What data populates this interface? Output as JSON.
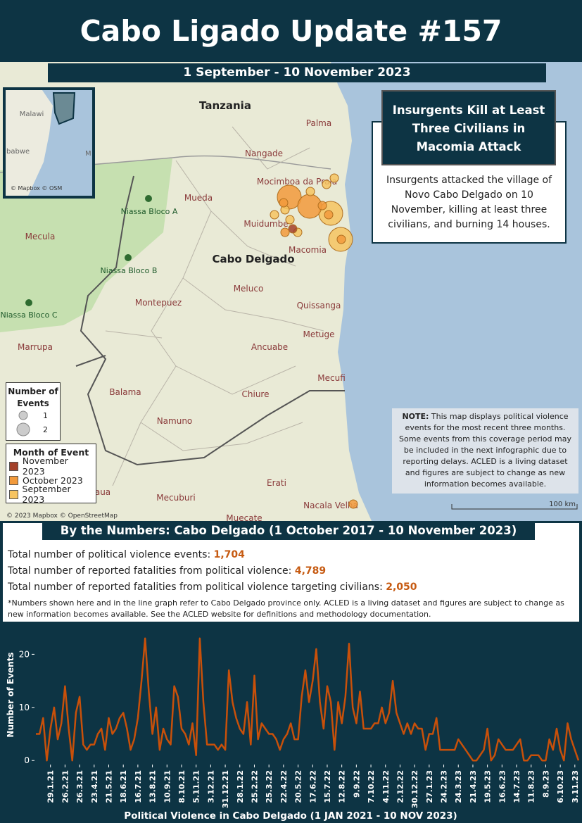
{
  "header": {
    "title": "Cabo Ligado Update #157",
    "period": "1 September - 10 November 2023"
  },
  "map": {
    "places": [
      "Tanzania",
      "Cabo Delgado",
      "Palma",
      "Nangade",
      "Mocimboa da Praia",
      "Mueda",
      "Muidumbe",
      "Macomia",
      "Meluco",
      "Quissanga",
      "Montepuez",
      "Metuge",
      "Ancuabe",
      "Mecufi",
      "Chiure",
      "Balama",
      "Namuno",
      "Mecuburi",
      "Erati",
      "Nacala Velha",
      "Muecate",
      "Marrupa",
      "Mecula",
      "aua"
    ],
    "reserves": [
      "Niassa Bloco A",
      "Niassa Bloco B",
      "Niassa Bloco C"
    ],
    "inset": {
      "labels": [
        "Malawi",
        "babwe",
        "M"
      ],
      "credit": "© Mapbox © OSM"
    },
    "credit": "© 2023 Mapbox © OpenStreetMap",
    "scale": "100 km",
    "events": [
      {
        "count": 2,
        "month": "October 2023"
      },
      {
        "count": 2,
        "month": "September 2023"
      },
      {
        "count": 2,
        "month": "September 2023"
      },
      {
        "count": 2,
        "month": "October 2023"
      },
      {
        "count": 1,
        "month": "September 2023"
      },
      {
        "count": 1,
        "month": "September 2023"
      },
      {
        "count": 1,
        "month": "October 2023"
      },
      {
        "count": 1,
        "month": "October 2023"
      },
      {
        "count": 1,
        "month": "October 2023"
      },
      {
        "count": 1,
        "month": "September 2023"
      },
      {
        "count": 1,
        "month": "September 2023"
      },
      {
        "count": 1,
        "month": "October 2023"
      },
      {
        "count": 1,
        "month": "September 2023"
      },
      {
        "count": 1,
        "month": "September 2023"
      },
      {
        "count": 1,
        "month": "October 2023"
      },
      {
        "count": 1,
        "month": "November 2023"
      },
      {
        "count": 1,
        "month": "September 2023"
      },
      {
        "count": 1,
        "month": "October 2023"
      }
    ],
    "size_legend": {
      "title": "Number of Events",
      "values": [
        1,
        2
      ]
    },
    "month_legend": {
      "title": "Month of Event",
      "entries": [
        {
          "label": "November 2023",
          "color": "#a3402a"
        },
        {
          "label": "October 2023",
          "color": "#f29a3c"
        },
        {
          "label": "September 2023",
          "color": "#f6c462"
        }
      ]
    }
  },
  "callout": {
    "title": "Insurgents Kill at Least Three Civilians in Macomia Attack",
    "text": "Insurgents attacked the village of Novo Cabo Delgado on 10 November, killing at least three civilians, and burning 14 houses."
  },
  "note": {
    "lead": "NOTE:",
    "text": "This map displays political violence events for the most recent three months. Some events from this coverage period may be included in the next infographic due to reporting delays. ACLED is a living dataset and figures are subject to change as new information becomes available."
  },
  "numbers": {
    "title": "By the Numbers: Cabo Delgado (1 October 2017 - 10 November 2023)",
    "rows": [
      {
        "label": "Total number of political violence events:",
        "value": "1,704"
      },
      {
        "label": "Total number of reported fatalities from political violence:",
        "value": "4,789"
      },
      {
        "label": "Total number of reported fatalities from political violence targeting civilians:",
        "value": "2,050"
      }
    ],
    "footnote": "*Numbers shown here and in the line graph refer to Cabo Delgado province only. ACLED is a living dataset and figures are subject to change as new information becomes available. See the ACLED website for definitions and methodology documentation."
  },
  "chart_data": {
    "type": "line",
    "xlabel": "Political Violence in Cabo Delgado (1 JAN 2021 - 10 NOV 2023)",
    "ylabel": "Number of Events",
    "color": "#c8500a",
    "ylim": [
      -0.5,
      23.5
    ],
    "yticks": [
      0,
      10,
      20
    ],
    "categories": [
      null,
      null,
      null,
      null,
      "29.1.21",
      null,
      null,
      null,
      "26.2.21",
      null,
      null,
      null,
      "26.3.21",
      null,
      null,
      null,
      "23.4.21",
      null,
      null,
      null,
      "21.5.21",
      null,
      null,
      null,
      "18.6.21",
      null,
      null,
      null,
      "16.7.21",
      null,
      null,
      null,
      "13.8.21",
      null,
      null,
      null,
      "10.9.21",
      null,
      null,
      null,
      "8.10.21",
      null,
      null,
      null,
      "5.11.21",
      null,
      null,
      null,
      "3.12.21",
      null,
      null,
      null,
      "31.12.21",
      null,
      null,
      null,
      "28.1.22",
      null,
      null,
      null,
      "25.2.22",
      null,
      null,
      null,
      "25.3.22",
      null,
      null,
      null,
      "22.4.22",
      null,
      null,
      null,
      "20.5.22",
      null,
      null,
      null,
      "17.6.22",
      null,
      null,
      null,
      "15.7.22",
      null,
      null,
      null,
      "12.8.22",
      null,
      null,
      null,
      "9.9.22",
      null,
      null,
      null,
      "7.10.22",
      null,
      null,
      null,
      "4.11.22",
      null,
      null,
      null,
      "2.12.22",
      null,
      null,
      null,
      "30.12.22",
      null,
      null,
      null,
      "27.1.23",
      null,
      null,
      null,
      "24.2.23",
      null,
      null,
      null,
      "24.3.23",
      null,
      null,
      null,
      "21.4.23",
      null,
      null,
      null,
      "19.5.23",
      null,
      null,
      null,
      "16.6.23",
      null,
      null,
      null,
      "14.7.23",
      null,
      null,
      null,
      "11.8.23",
      null,
      null,
      null,
      "8.9.23",
      null,
      null,
      null,
      "6.10.23",
      null,
      null,
      null,
      "3.11.23",
      null
    ],
    "values": [
      5,
      5,
      8,
      0,
      6,
      10,
      4,
      7,
      14,
      6,
      0,
      9,
      12,
      3,
      2,
      3,
      3,
      5,
      6,
      2,
      8,
      5,
      6,
      8,
      9,
      6,
      2,
      4,
      8,
      15,
      23,
      13,
      5,
      10,
      2,
      6,
      4,
      3,
      14,
      12,
      6,
      5,
      3,
      7,
      1,
      23,
      11,
      3,
      3,
      3,
      2,
      3,
      2,
      17,
      11,
      8,
      6,
      5,
      11,
      3,
      16,
      4,
      7,
      6,
      5,
      5,
      4,
      2,
      4,
      5,
      7,
      4,
      4,
      12,
      17,
      11,
      15,
      21,
      11,
      6,
      14,
      11,
      2,
      11,
      7,
      12,
      22,
      10,
      7,
      13,
      6,
      6,
      6,
      7,
      7,
      10,
      7,
      9,
      15,
      9,
      7,
      5,
      7,
      5,
      7,
      6,
      6,
      2,
      5,
      5,
      8,
      2,
      2,
      2,
      2,
      2,
      4,
      3,
      2,
      1,
      0,
      0,
      1,
      2,
      6,
      0,
      1,
      4,
      3,
      2,
      2,
      2,
      3,
      4,
      0,
      0,
      1,
      1,
      1,
      0,
      0,
      4,
      2,
      6,
      2,
      0,
      7,
      4,
      2,
      0
    ]
  }
}
